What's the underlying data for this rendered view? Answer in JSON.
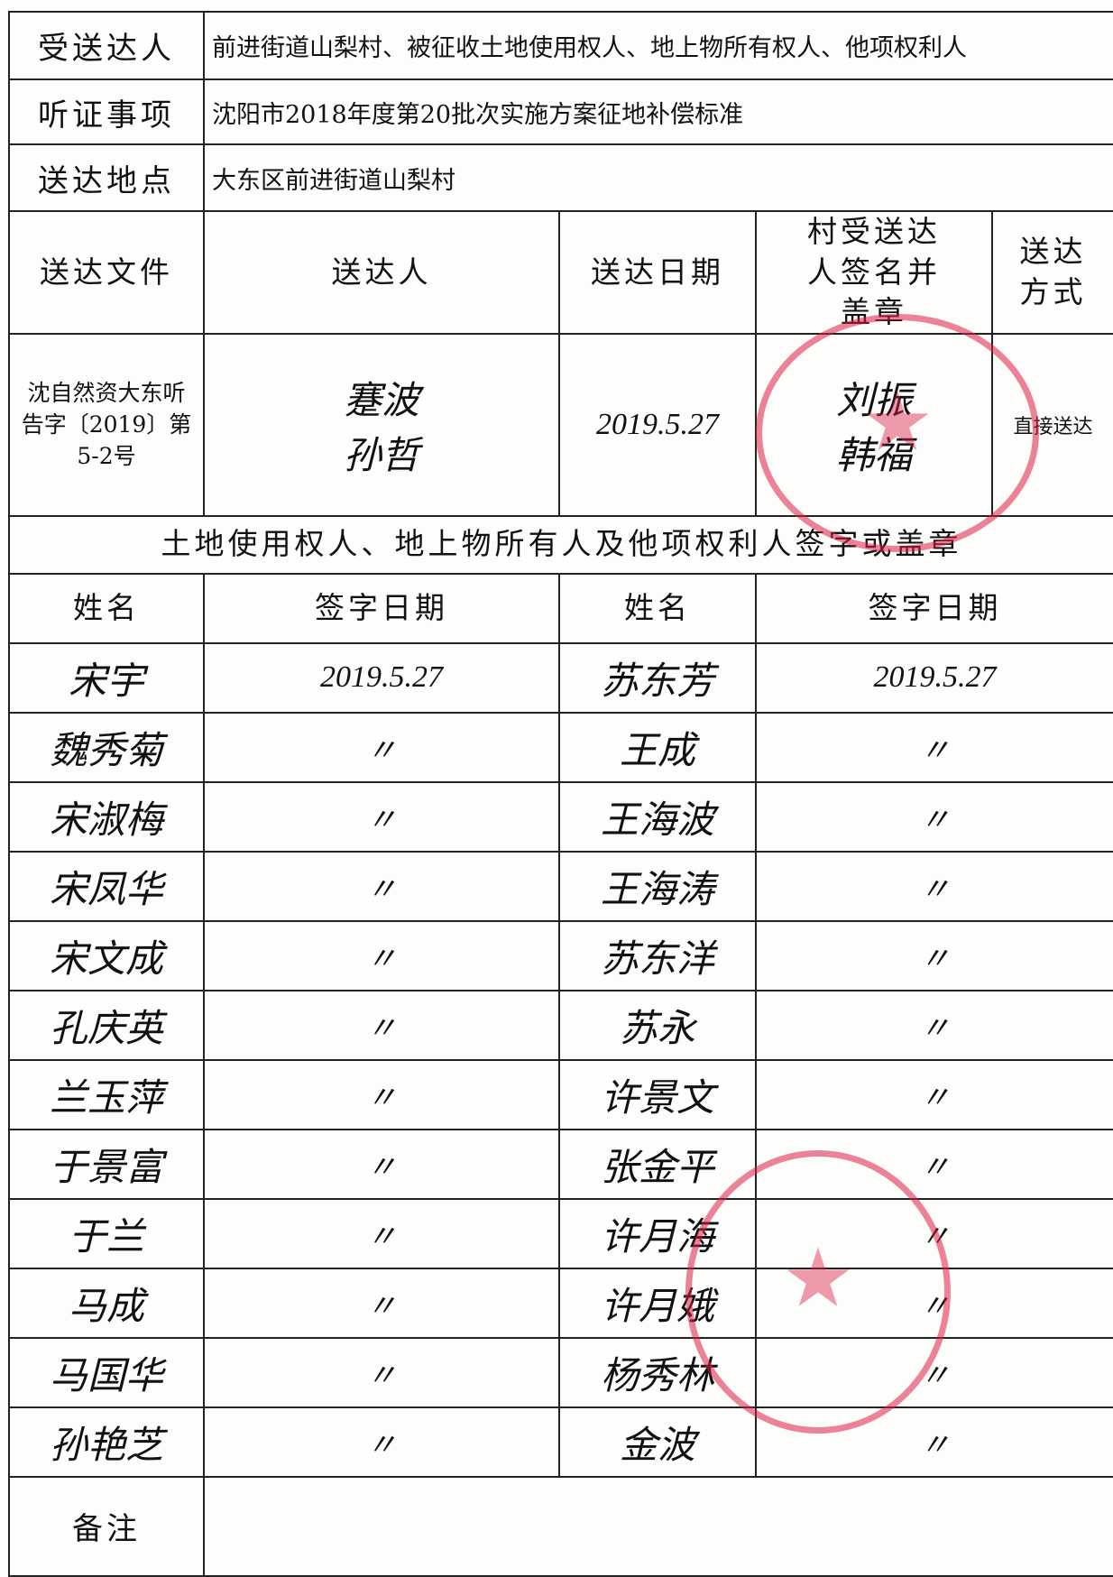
{
  "fields": [
    {
      "label": "受送达人",
      "value": "前进街道山梨村、被征收土地使用权人、地上物所有权人、他项权利人"
    },
    {
      "label": "听证事项",
      "value": "沈阳市2018年度第20批次实施方案征地补偿标准"
    },
    {
      "label": "送达地点",
      "value": "大东区前进街道山梨村"
    }
  ],
  "delivery": {
    "headers": [
      "送达文件",
      "送达人",
      "送达日期",
      "村受送达人签名并盖章",
      "送达方式"
    ],
    "document": "沈自然资大东听告字〔2019〕第5-2号",
    "deliverers": [
      "蹇波",
      "孙哲"
    ],
    "date": "2019.5.27",
    "village_signers": [
      "刘振",
      "韩福"
    ],
    "method": "直接送达"
  },
  "signatures": {
    "title": "土地使用权人、地上物所有人及他项权利人签字或盖章",
    "headers": [
      "姓名",
      "签字日期",
      "姓名",
      "签字日期"
    ],
    "rows": [
      [
        "宋宇",
        "2019.5.27",
        "苏东芳",
        "2019.5.27"
      ],
      [
        "魏秀菊",
        "〃",
        "王成",
        "〃"
      ],
      [
        "宋淑梅",
        "〃",
        "王海波",
        "〃"
      ],
      [
        "宋凤华",
        "〃",
        "王海涛",
        "〃"
      ],
      [
        "宋文成",
        "〃",
        "苏东洋",
        "〃"
      ],
      [
        "孔庆英",
        "〃",
        "苏永",
        "〃"
      ],
      [
        "兰玉萍",
        "〃",
        "许景文",
        "〃"
      ],
      [
        "于景富",
        "〃",
        "张金平",
        "〃"
      ],
      [
        "于兰",
        "〃",
        "许月海",
        "〃"
      ],
      [
        "马成",
        "〃",
        "许月娥",
        "〃"
      ],
      [
        "马国华",
        "〃",
        "杨秀林",
        "〃"
      ],
      [
        "孙艳芝",
        "〃",
        "金波",
        "〃"
      ]
    ]
  },
  "remark_label": "备注"
}
